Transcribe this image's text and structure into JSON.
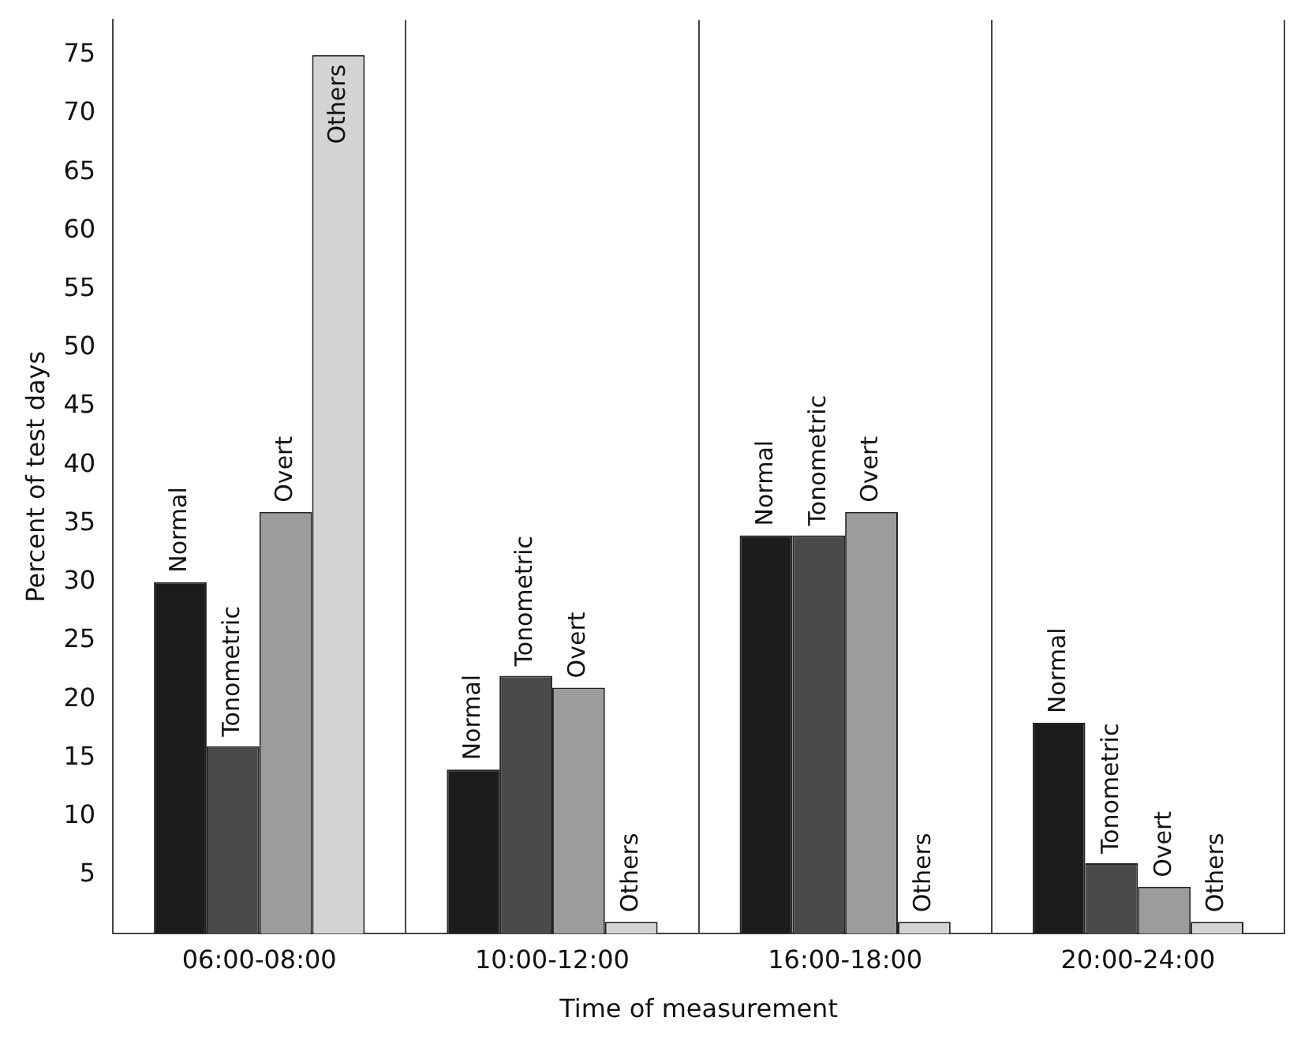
{
  "chart_data": {
    "type": "bar",
    "xlabel": "Time of measurement",
    "ylabel": "Percent of test days",
    "categories": [
      "06:00-08:00",
      "10:00-12:00",
      "16:00-18:00",
      "20:00-24:00"
    ],
    "series": [
      {
        "name": "Normal",
        "color": "#1c1c1c",
        "values": [
          30,
          14,
          34,
          18
        ]
      },
      {
        "name": "Tonometric",
        "color": "#4a4a4a",
        "values": [
          16,
          22,
          34,
          6
        ]
      },
      {
        "name": "Overt",
        "color": "#9c9c9c",
        "values": [
          36,
          21,
          36,
          4
        ]
      },
      {
        "name": "Others",
        "color": "#d4d4d4",
        "values": [
          75,
          1,
          1,
          1
        ]
      }
    ],
    "ylim": [
      0,
      78
    ],
    "yticks": [
      5,
      10,
      15,
      20,
      25,
      30,
      35,
      40,
      45,
      50,
      55,
      60,
      65,
      70,
      75
    ],
    "grid": "x",
    "legend": false
  }
}
